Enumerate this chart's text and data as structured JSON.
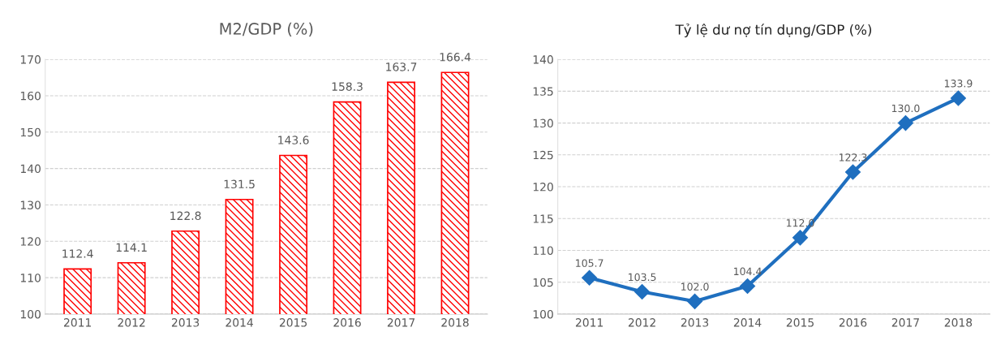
{
  "chart_data": [
    {
      "type": "bar",
      "title": "M2/GDP (%)",
      "categories": [
        "2011",
        "2012",
        "2013",
        "2014",
        "2015",
        "2016",
        "2017",
        "2018"
      ],
      "values": [
        112.4,
        114.1,
        122.8,
        131.5,
        143.6,
        158.3,
        163.7,
        166.4
      ],
      "value_labels": [
        "112.4",
        "114.1",
        "122.8",
        "131.5",
        "143.6",
        "158.3",
        "163.7",
        "166.4"
      ],
      "color": "#ff0000",
      "ylim": [
        100,
        170
      ],
      "yticks": [
        100,
        110,
        120,
        130,
        140,
        150,
        160,
        170
      ],
      "grid": "y"
    },
    {
      "type": "line",
      "title": "Tỷ lệ dư nợ tín dụng/GDP (%)",
      "categories": [
        "2011",
        "2012",
        "2013",
        "2014",
        "2015",
        "2016",
        "2017",
        "2018"
      ],
      "values": [
        105.7,
        103.5,
        102.0,
        104.4,
        112.0,
        122.3,
        130.0,
        133.9
      ],
      "value_labels": [
        "105.7",
        "103.5",
        "102.0",
        "104.4",
        "112.0",
        "122.3",
        "130.0",
        "133.9"
      ],
      "color": "#1f6fbf",
      "marker": "diamond",
      "line_style": "solid",
      "ylim": [
        100,
        140
      ],
      "yticks": [
        100,
        105,
        110,
        115,
        120,
        125,
        130,
        135,
        140
      ],
      "grid": "y"
    }
  ]
}
